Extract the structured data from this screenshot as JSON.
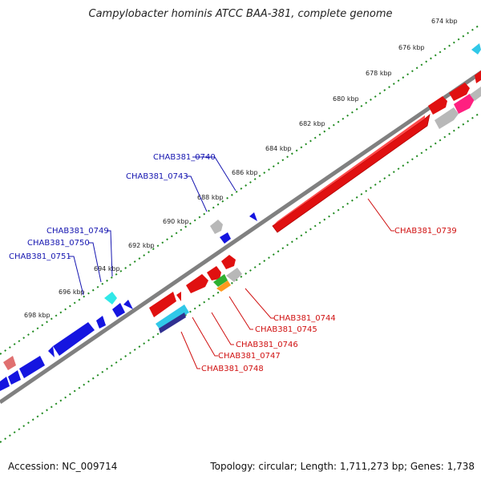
{
  "title": "Campylobacter hominis ATCC BAA-381, complete genome",
  "footer": {
    "accession": "Accession: NC_009714",
    "summary": "Topology: circular; Length: 1,711,273 bp; Genes: 1,738"
  },
  "colors": {
    "backbone": "#808080",
    "ticks": "#1f8a1f",
    "forward_label": "#1515b0",
    "reverse_label": "#d01010"
  },
  "ticks": [
    "674 kbp",
    "676 kbp",
    "678 kbp",
    "680 kbp",
    "682 kbp",
    "684 kbp",
    "686 kbp",
    "688 kbp",
    "690 kbp",
    "692 kbp",
    "694 kbp",
    "696 kbp",
    "698 kbp"
  ],
  "gene_labels": {
    "forward": [
      "CHAB381_0740",
      "CHAB381_0743",
      "CHAB381_0749",
      "CHAB381_0750",
      "CHAB381_0751"
    ],
    "reverse": [
      "CHAB381_0739",
      "CHAB381_0744",
      "CHAB381_0745",
      "CHAB381_0746",
      "CHAB381_0747",
      "CHAB381_0748"
    ]
  }
}
